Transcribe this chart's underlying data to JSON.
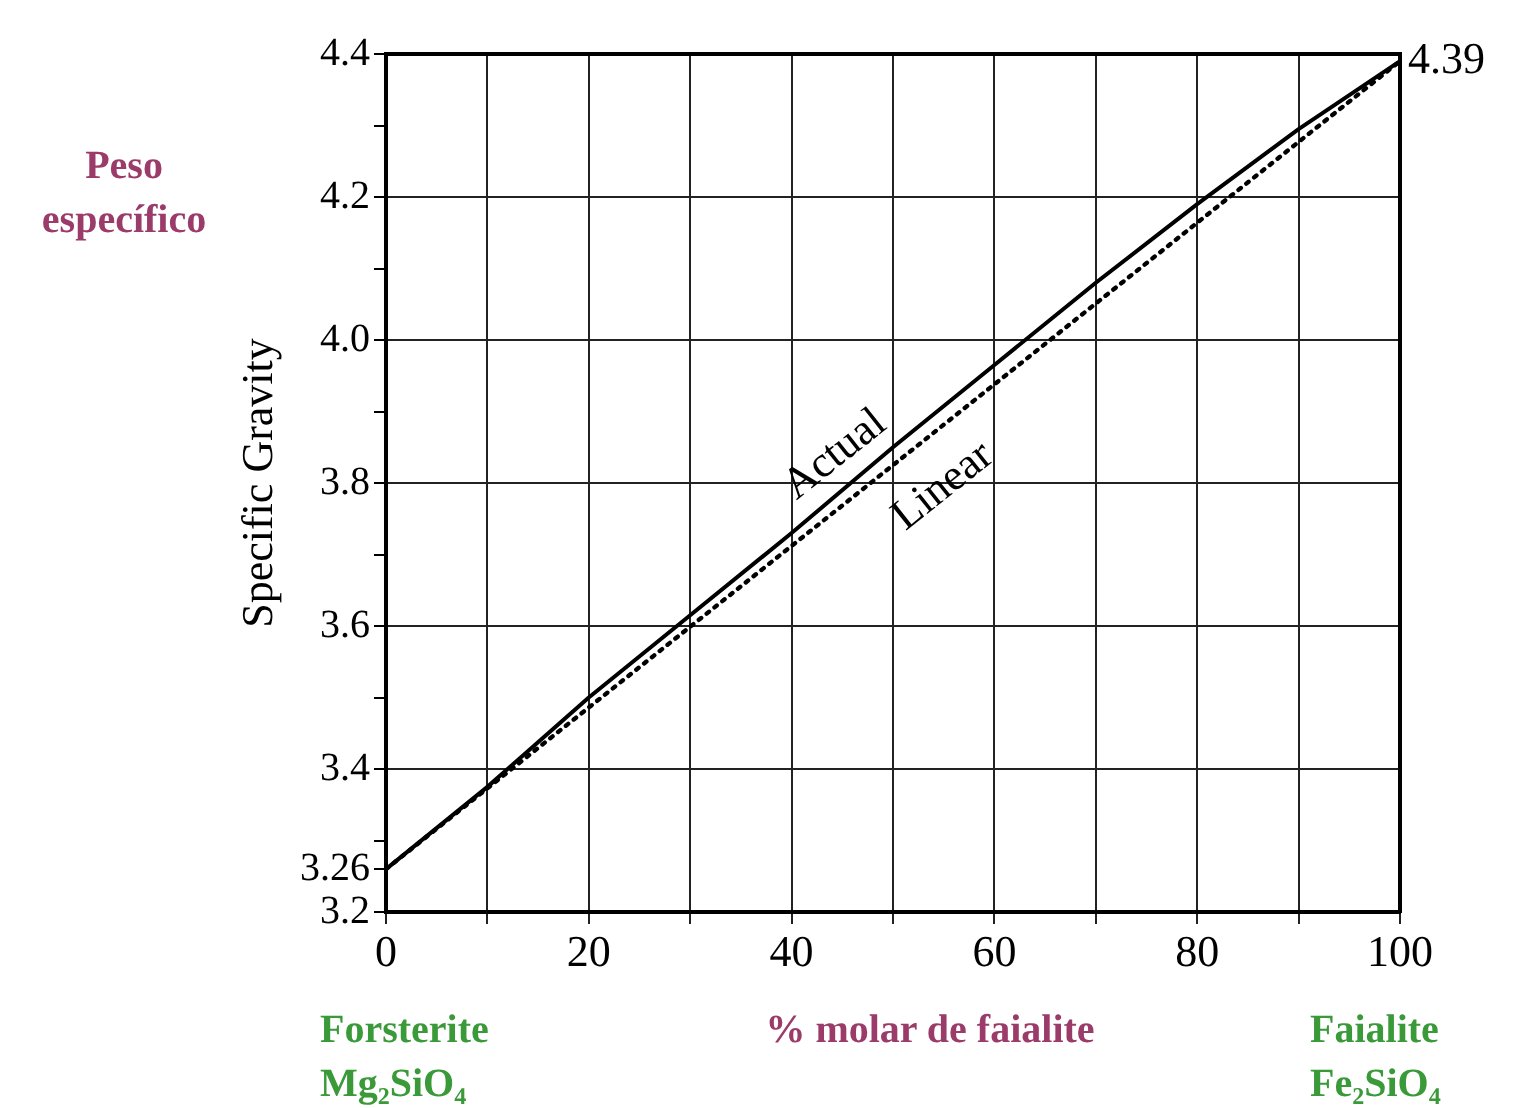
{
  "chart_data": {
    "type": "line",
    "xlabel": "% molar de faialite",
    "ylabel": "Specific Gravity",
    "x": [
      0,
      10,
      20,
      30,
      40,
      50,
      60,
      70,
      80,
      90,
      100
    ],
    "series": [
      {
        "name": "Actual",
        "color": "#000000",
        "line_style": "solid",
        "values": [
          3.26,
          3.375,
          3.5,
          3.615,
          3.73,
          3.85,
          3.965,
          4.08,
          4.19,
          4.295,
          4.39
        ]
      },
      {
        "name": "Linear",
        "color": "#000000",
        "line_style": "dotted",
        "x": [
          0,
          100
        ],
        "values": [
          3.26,
          4.39
        ]
      }
    ],
    "xlim": [
      0,
      100
    ],
    "xticks": [
      0,
      {
        "value": 10,
        "label": null
      },
      20,
      {
        "value": 30,
        "label": null
      },
      40,
      {
        "value": 50,
        "label": null
      },
      60,
      {
        "value": 70,
        "label": null
      },
      80,
      {
        "value": 90,
        "label": null
      },
      100
    ],
    "ylim": [
      3.2,
      4.4
    ],
    "yticks": [
      {
        "value": 3.2,
        "label": "3.2"
      },
      {
        "value": 3.26,
        "label": "3.26"
      },
      {
        "value": 3.3,
        "label": null
      },
      {
        "value": 3.4,
        "label": "3.4"
      },
      {
        "value": 3.5,
        "label": null
      },
      {
        "value": 3.6,
        "label": "3.6"
      },
      {
        "value": 3.7,
        "label": null
      },
      {
        "value": 3.8,
        "label": "3.8"
      },
      {
        "value": 3.9,
        "label": null
      },
      {
        "value": 4.0,
        "label": "4.0"
      },
      {
        "value": 4.1,
        "label": null
      },
      {
        "value": 4.2,
        "label": "4.2"
      },
      {
        "value": 4.3,
        "label": null
      },
      {
        "value": 4.4,
        "label": "4.4"
      }
    ],
    "grid": true,
    "marker": "none",
    "legend": false,
    "annotations": [
      {
        "text": "4.39",
        "x": 100,
        "y": 4.39
      },
      "Peso\nespecífico",
      "Forsterite\nMg₂SiO₄",
      "Faialite\nFe₂SiO₄"
    ]
  }
}
